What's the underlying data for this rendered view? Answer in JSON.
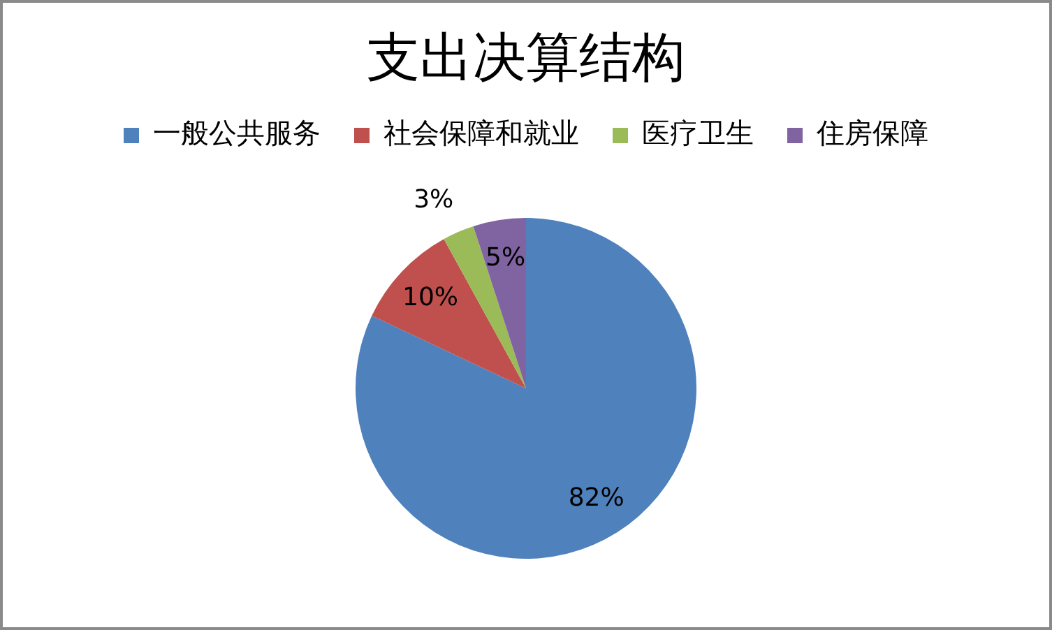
{
  "chart_data": {
    "type": "pie",
    "title": "支出决算结构",
    "categories": [
      "一般公共服务",
      "社会保障和就业",
      "医疗卫生",
      "住房保障"
    ],
    "values": [
      82,
      10,
      3,
      5
    ],
    "colors": [
      "#4f81bd",
      "#c0504d",
      "#9bbb59",
      "#8064a2"
    ],
    "value_labels": [
      "82%",
      "10%",
      "3%",
      "5%"
    ],
    "legend": "top"
  }
}
